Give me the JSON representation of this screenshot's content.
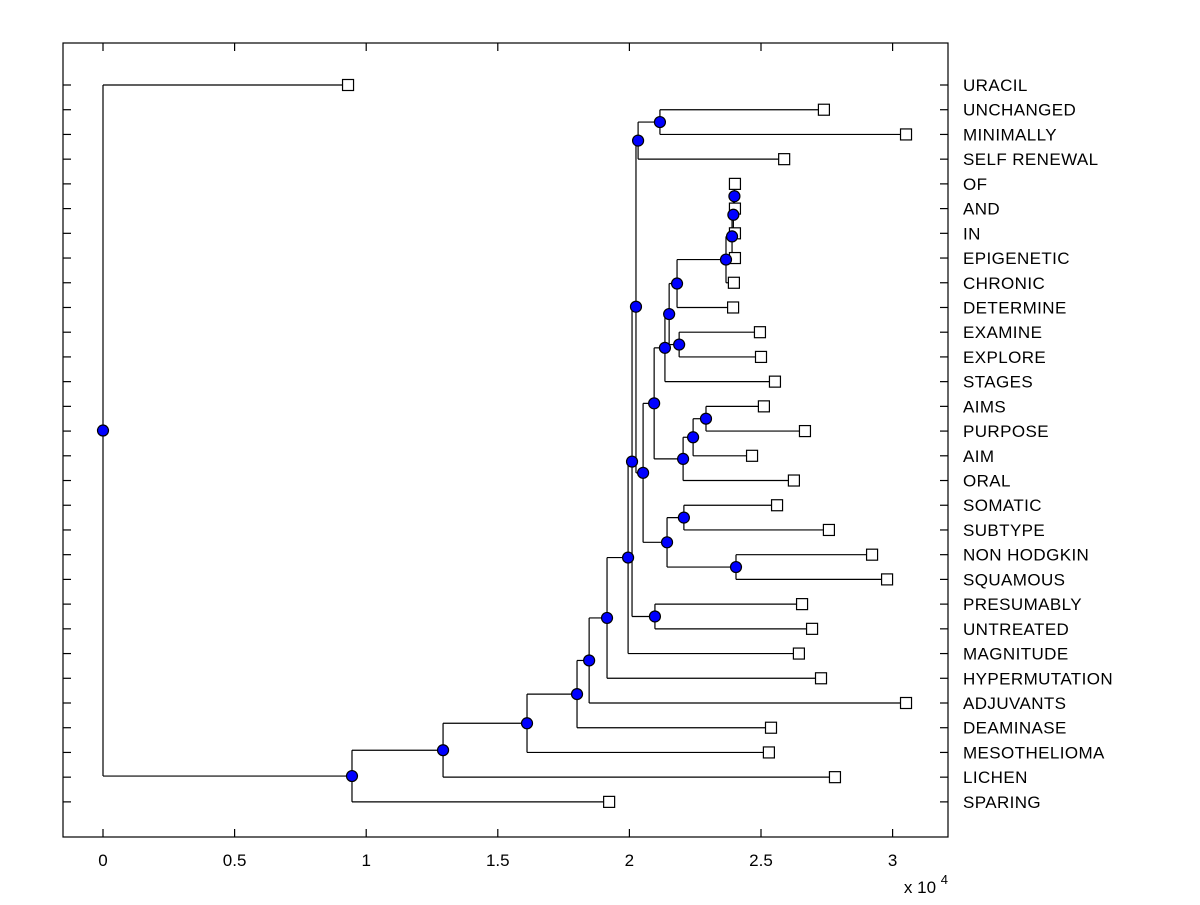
{
  "chart_data": {
    "type": "dendrogram",
    "title": "",
    "orientation": "horizontal-leaves-right",
    "units_note": "branch heights in units of 1e4 as labeled by axis multiplier",
    "x_axis": {
      "ticks": [
        0,
        0.5,
        1,
        1.5,
        2,
        2.5,
        3
      ],
      "tick_labels": [
        "0",
        "0.5",
        "1",
        "1.5",
        "2",
        "2.5",
        "3"
      ],
      "multiplier_base": "x 10",
      "multiplier_exponent": "4",
      "xlim": [
        -0.152,
        3.211
      ]
    },
    "grid": "off",
    "legend": "none",
    "markers": {
      "leaf_marker": "open-square",
      "branch_marker": "filled-circle"
    },
    "colors": {
      "line": "#000000",
      "branch_node_fill": "#0000FF",
      "branch_node_edge": "#000000",
      "leaf_marker_fill": "#FFFFFF",
      "leaf_marker_edge": "#000000",
      "background": "#FFFFFF"
    },
    "leaves": [
      "URACIL",
      "UNCHANGED",
      "MINIMALLY",
      "SELF RENEWAL",
      "OF",
      "AND",
      "IN",
      "EPIGENETIC",
      "CHRONIC",
      "DETERMINE",
      "EXAMINE",
      "EXPLORE",
      "STAGES",
      "AIMS",
      "PURPOSE",
      "AIM",
      "ORAL",
      "SOMATIC",
      "SUBTYPE",
      "NON HODGKIN",
      "SQUAMOUS",
      "PRESUMABLY",
      "UNTREATED",
      "MAGNITUDE",
      "HYPERMUTATION",
      "ADJUVANTS",
      "DEAMINASE",
      "MESOTHELIOMA",
      "LICHEN",
      "SPARING"
    ],
    "tree": {
      "h": 0.0,
      "c": [
        {
          "n": "URACIL",
          "h": 0.931
        },
        {
          "h": 0.946,
          "c": [
            {
              "h": 1.292,
              "c": [
                {
                  "h": 1.611,
                  "c": [
                    {
                      "h": 1.801,
                      "c": [
                        {
                          "h": 1.847,
                          "c": [
                            {
                              "h": 1.915,
                              "c": [
                                {
                                  "h": 1.995,
                                  "c": [
                                    {
                                      "h": 2.01,
                                      "c": [
                                        {
                                          "h": 2.025,
                                          "c": [
                                            {
                                              "h": 2.033,
                                              "c": [
                                                {
                                                  "h": 2.116,
                                                  "c": [
                                                    {
                                                      "n": "UNCHANGED",
                                                      "h": 2.739
                                                    },
                                                    {
                                                      "n": "MINIMALLY",
                                                      "h": 3.051
                                                    }
                                                  ]
                                                },
                                                {
                                                  "n": "SELF RENEWAL",
                                                  "h": 2.588
                                                }
                                              ]
                                            },
                                            {
                                              "h": 2.052,
                                              "c": [
                                                {
                                                  "h": 2.094,
                                                  "c": [
                                                    {
                                                      "h": 2.135,
                                                      "c": [
                                                        {
                                                          "h": 2.151,
                                                          "c": [
                                                            {
                                                              "h": 2.181,
                                                              "c": [
                                                                {
                                                                  "h": 2.367,
                                                                  "c": [
                                                                    {
                                                                      "h": 2.39,
                                                                      "c": [
                                                                        {
                                                                          "h": 2.395,
                                                                          "c": [
                                                                            {
                                                                              "h": 2.399,
                                                                              "c": [
                                                                                {
                                                                                  "n": "OF",
                                                                                  "h": 2.401
                                                                                },
                                                                                {
                                                                                  "n": "AND",
                                                                                  "h": 2.401
                                                                                }
                                                                              ]
                                                                            },
                                                                            {
                                                                              "n": "IN",
                                                                              "h": 2.401
                                                                            }
                                                                          ]
                                                                        },
                                                                        {
                                                                          "n": "EPIGENETIC",
                                                                          "h": 2.401
                                                                        }
                                                                      ]
                                                                    },
                                                                    {
                                                                      "n": "CHRONIC",
                                                                      "h": 2.397
                                                                    }
                                                                  ]
                                                                },
                                                                {
                                                                  "n": "DETERMINE",
                                                                  "h": 2.394
                                                                }
                                                              ]
                                                            },
                                                            {
                                                              "h": 2.189,
                                                              "c": [
                                                                {
                                                                  "n": "EXAMINE",
                                                                  "h": 2.496
                                                                },
                                                                {
                                                                  "n": "EXPLORE",
                                                                  "h": 2.5
                                                                }
                                                              ]
                                                            }
                                                          ]
                                                        },
                                                        {
                                                          "n": "STAGES",
                                                          "h": 2.553
                                                        }
                                                      ]
                                                    },
                                                    {
                                                      "h": 2.204,
                                                      "c": [
                                                        {
                                                          "h": 2.242,
                                                          "c": [
                                                            {
                                                              "h": 2.291,
                                                              "c": [
                                                                {
                                                                  "n": "AIMS",
                                                                  "h": 2.511
                                                                },
                                                                {
                                                                  "n": "PURPOSE",
                                                                  "h": 2.667
                                                                }
                                                              ]
                                                            },
                                                            {
                                                              "n": "AIM",
                                                              "h": 2.466
                                                            }
                                                          ]
                                                        },
                                                        {
                                                          "n": "ORAL",
                                                          "h": 2.625
                                                        }
                                                      ]
                                                    }
                                                  ]
                                                },
                                                {
                                                  "h": 2.143,
                                                  "c": [
                                                    {
                                                      "h": 2.207,
                                                      "c": [
                                                        {
                                                          "n": "SOMATIC",
                                                          "h": 2.561
                                                        },
                                                        {
                                                          "n": "SUBTYPE",
                                                          "h": 2.758
                                                        }
                                                      ]
                                                    },
                                                    {
                                                      "h": 2.405,
                                                      "c": [
                                                        {
                                                          "n": "NON HODGKIN",
                                                          "h": 2.922
                                                        },
                                                        {
                                                          "n": "SQUAMOUS",
                                                          "h": 2.979
                                                        }
                                                      ]
                                                    }
                                                  ]
                                                }
                                              ]
                                            }
                                          ]
                                        },
                                        {
                                          "h": 2.097,
                                          "c": [
                                            {
                                              "n": "PRESUMABLY",
                                              "h": 2.656
                                            },
                                            {
                                              "n": "UNTREATED",
                                              "h": 2.694
                                            }
                                          ]
                                        }
                                      ]
                                    },
                                    {
                                      "n": "MAGNITUDE",
                                      "h": 2.644
                                    }
                                  ]
                                },
                                {
                                  "n": "HYPERMUTATION",
                                  "h": 2.728
                                }
                              ]
                            },
                            {
                              "n": "ADJUVANTS",
                              "h": 3.051
                            }
                          ]
                        },
                        {
                          "n": "DEAMINASE",
                          "h": 2.538
                        }
                      ]
                    },
                    {
                      "n": "MESOTHELIOMA",
                      "h": 2.53
                    }
                  ]
                },
                {
                  "n": "LICHEN",
                  "h": 2.781
                }
              ]
            },
            {
              "n": "SPARING",
              "h": 1.923
            }
          ]
        }
      ]
    }
  }
}
